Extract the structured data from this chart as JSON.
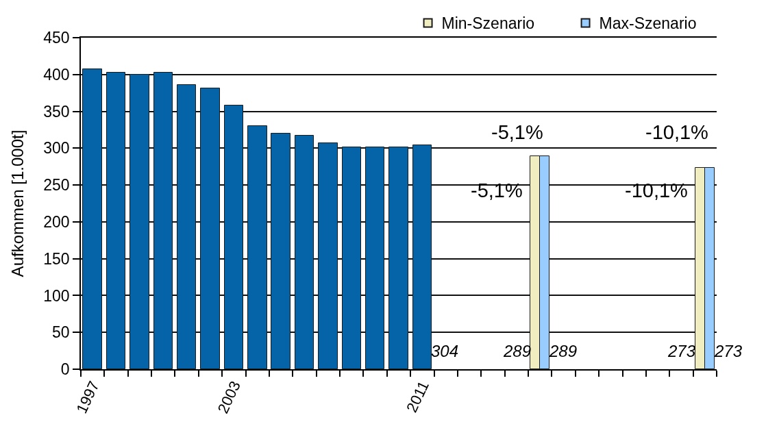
{
  "chart_data": {
    "type": "bar",
    "ylabel": "Aufkommen [1.000t]",
    "categories": [
      "1997",
      null,
      null,
      null,
      null,
      null,
      "2003",
      null,
      null,
      null,
      null,
      null,
      null,
      null,
      "2011",
      null,
      null,
      null,
      null,
      null,
      null,
      null,
      null,
      null,
      null,
      null,
      null
    ],
    "series": [
      {
        "color": "#0563a8",
        "values": [
          407,
          403,
          400,
          403,
          386,
          381,
          358,
          330,
          320,
          317,
          307,
          301,
          301,
          301,
          304,
          null,
          null,
          null,
          null,
          null,
          null,
          null,
          null,
          null,
          null,
          null,
          null
        ],
        "value_labels": [
          null,
          null,
          null,
          null,
          null,
          null,
          null,
          null,
          null,
          null,
          null,
          null,
          null,
          null,
          "304",
          null,
          null,
          null,
          null,
          null,
          null,
          null,
          null,
          null,
          null,
          null,
          null
        ]
      },
      {
        "name": "Min-Szenario",
        "color": "#f0eec0",
        "values": [
          null,
          null,
          null,
          null,
          null,
          null,
          null,
          null,
          null,
          null,
          null,
          null,
          null,
          null,
          null,
          null,
          null,
          null,
          null,
          289,
          null,
          null,
          null,
          null,
          null,
          null,
          273
        ],
        "value_labels": [
          null,
          null,
          null,
          null,
          null,
          null,
          null,
          null,
          null,
          null,
          null,
          null,
          null,
          null,
          null,
          null,
          null,
          null,
          null,
          "289",
          null,
          null,
          null,
          null,
          null,
          null,
          "273"
        ]
      },
      {
        "name": "Max-Szenario",
        "color": "#99ccff",
        "values": [
          null,
          null,
          null,
          null,
          null,
          null,
          null,
          null,
          null,
          null,
          null,
          null,
          null,
          null,
          null,
          null,
          null,
          null,
          null,
          289,
          null,
          null,
          null,
          null,
          null,
          null,
          273
        ],
        "value_labels": [
          null,
          null,
          null,
          null,
          null,
          null,
          null,
          null,
          null,
          null,
          null,
          null,
          null,
          null,
          null,
          null,
          null,
          null,
          null,
          "289",
          null,
          null,
          null,
          null,
          null,
          null,
          "273"
        ]
      }
    ],
    "ylim": [
      0,
      450
    ],
    "yticks": [
      0,
      50,
      100,
      150,
      200,
      250,
      300,
      350,
      400,
      450
    ],
    "grid": "y",
    "legend": "top right",
    "annotations": [
      "-5,1%",
      "-10,1%",
      "-5,1%",
      "-10,1%"
    ]
  }
}
